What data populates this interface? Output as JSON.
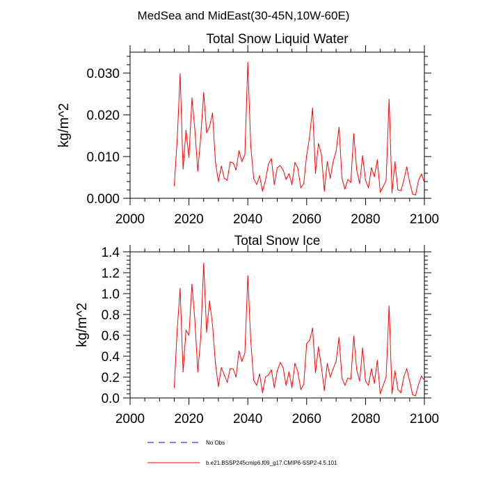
{
  "suptitle": "MedSea and MidEast(30-45N,10W-60E)",
  "legend": [
    {
      "label": "No Obs",
      "color": "#0000ff",
      "style": "dashed"
    },
    {
      "label": "b.e21.BSSP245cmip6.f09_g17.CMIP6-SSP2-4.5.101",
      "color": "#ff0000",
      "style": "solid"
    }
  ],
  "chart_data": [
    {
      "type": "line",
      "title": "Total Snow Liquid Water",
      "xlabel": "",
      "ylabel": "kg/m^2",
      "xlim": [
        2000,
        2100
      ],
      "ylim": [
        0,
        0.035
      ],
      "xticks": [
        2000,
        2020,
        2040,
        2060,
        2080,
        2100
      ],
      "xtick_labels": [
        "2000",
        "2020",
        "2040",
        "2060",
        "2080",
        "2100"
      ],
      "yticks": [
        0,
        0.01,
        0.02,
        0.03
      ],
      "ytick_labels": [
        "0.000",
        "0.010",
        "0.020",
        "0.030"
      ],
      "series": [
        {
          "name": "b.e21.BSSP245cmip6.f09_g17.CMIP6-SSP2-4.5.101",
          "color": "#ff0000",
          "x": [
            2015,
            2016,
            2017,
            2018,
            2019,
            2020,
            2021,
            2022,
            2023,
            2024,
            2025,
            2026,
            2027,
            2028,
            2029,
            2030,
            2031,
            2032,
            2033,
            2034,
            2035,
            2036,
            2037,
            2038,
            2039,
            2040,
            2041,
            2042,
            2043,
            2044,
            2045,
            2046,
            2047,
            2048,
            2049,
            2050,
            2051,
            2052,
            2053,
            2054,
            2055,
            2056,
            2057,
            2058,
            2059,
            2060,
            2061,
            2062,
            2063,
            2064,
            2065,
            2066,
            2067,
            2068,
            2069,
            2070,
            2071,
            2072,
            2073,
            2074,
            2075,
            2076,
            2077,
            2078,
            2079,
            2080,
            2081,
            2082,
            2083,
            2084,
            2085,
            2086,
            2087,
            2088,
            2089,
            2090,
            2091,
            2092,
            2093,
            2094,
            2095,
            2096,
            2097,
            2098,
            2099,
            2100
          ],
          "values": [
            0.003,
            0.014,
            0.0298,
            0.007,
            0.0163,
            0.0098,
            0.024,
            0.0165,
            0.0065,
            0.0147,
            0.0253,
            0.0157,
            0.0172,
            0.0204,
            0.0087,
            0.004,
            0.0077,
            0.0048,
            0.0043,
            0.0087,
            0.0085,
            0.0068,
            0.0114,
            0.0088,
            0.0105,
            0.0325,
            0.0125,
            0.0047,
            0.0033,
            0.0054,
            0.0017,
            0.0043,
            0.0082,
            0.0095,
            0.0033,
            0.0073,
            0.0078,
            0.0068,
            0.0045,
            0.0059,
            0.0033,
            0.0086,
            0.0072,
            0.0025,
            0.0035,
            0.0103,
            0.0148,
            0.0216,
            0.006,
            0.0131,
            0.0105,
            0.0017,
            0.0088,
            0.0048,
            0.0088,
            0.0113,
            0.017,
            0.0048,
            0.0022,
            0.0045,
            0.0038,
            0.0155,
            0.0068,
            0.0035,
            0.0102,
            0.0043,
            0.0025,
            0.0073,
            0.0052,
            0.0092,
            0.0015,
            0.0028,
            0.0043,
            0.0237,
            0.0013,
            0.0087,
            0.002,
            0.0018,
            0.0043,
            0.0075,
            0.0038,
            0.001,
            0.0008,
            0.0043,
            0.0058,
            0.0038
          ]
        }
      ]
    },
    {
      "type": "line",
      "title": "Total Snow Ice",
      "xlabel": "",
      "ylabel": "kg/m^2",
      "xlim": [
        2000,
        2100
      ],
      "ylim": [
        0,
        1.4
      ],
      "xticks": [
        2000,
        2020,
        2040,
        2060,
        2080,
        2100
      ],
      "xtick_labels": [
        "2000",
        "2020",
        "2040",
        "2060",
        "2080",
        "2100"
      ],
      "yticks": [
        0,
        0.2,
        0.4,
        0.6,
        0.8,
        1.0,
        1.2,
        1.4
      ],
      "ytick_labels": [
        "0.0",
        "0.2",
        "0.4",
        "0.6",
        "0.8",
        "1.0",
        "1.2",
        "1.4"
      ],
      "series": [
        {
          "name": "b.e21.BSSP245cmip6.f09_g17.CMIP6-SSP2-4.5.101",
          "color": "#ff0000",
          "x": [
            2015,
            2016,
            2017,
            2018,
            2019,
            2020,
            2021,
            2022,
            2023,
            2024,
            2025,
            2026,
            2027,
            2028,
            2029,
            2030,
            2031,
            2032,
            2033,
            2034,
            2035,
            2036,
            2037,
            2038,
            2039,
            2040,
            2041,
            2042,
            2043,
            2044,
            2045,
            2046,
            2047,
            2048,
            2049,
            2050,
            2051,
            2052,
            2053,
            2054,
            2055,
            2056,
            2057,
            2058,
            2059,
            2060,
            2061,
            2062,
            2063,
            2064,
            2065,
            2066,
            2067,
            2068,
            2069,
            2070,
            2071,
            2072,
            2073,
            2074,
            2075,
            2076,
            2077,
            2078,
            2079,
            2080,
            2081,
            2082,
            2083,
            2084,
            2085,
            2086,
            2087,
            2088,
            2089,
            2090,
            2091,
            2092,
            2093,
            2094,
            2095,
            2096,
            2097,
            2098,
            2099,
            2100
          ],
          "values": [
            0.1,
            0.65,
            1.05,
            0.25,
            0.65,
            0.6,
            1.09,
            0.75,
            0.25,
            0.58,
            1.29,
            0.63,
            0.93,
            0.7,
            0.33,
            0.11,
            0.29,
            0.22,
            0.15,
            0.28,
            0.28,
            0.2,
            0.45,
            0.35,
            0.43,
            1.17,
            0.55,
            0.17,
            0.12,
            0.23,
            0.05,
            0.2,
            0.22,
            0.27,
            0.1,
            0.26,
            0.34,
            0.29,
            0.12,
            0.25,
            0.1,
            0.33,
            0.25,
            0.08,
            0.13,
            0.52,
            0.55,
            0.67,
            0.24,
            0.49,
            0.3,
            0.07,
            0.33,
            0.2,
            0.28,
            0.35,
            0.58,
            0.19,
            0.12,
            0.19,
            0.18,
            0.59,
            0.27,
            0.16,
            0.48,
            0.16,
            0.12,
            0.28,
            0.14,
            0.36,
            0.04,
            0.12,
            0.2,
            0.88,
            0.04,
            0.26,
            0.08,
            0.05,
            0.2,
            0.28,
            0.16,
            0.03,
            0.02,
            0.13,
            0.21,
            0.17
          ]
        }
      ]
    }
  ]
}
